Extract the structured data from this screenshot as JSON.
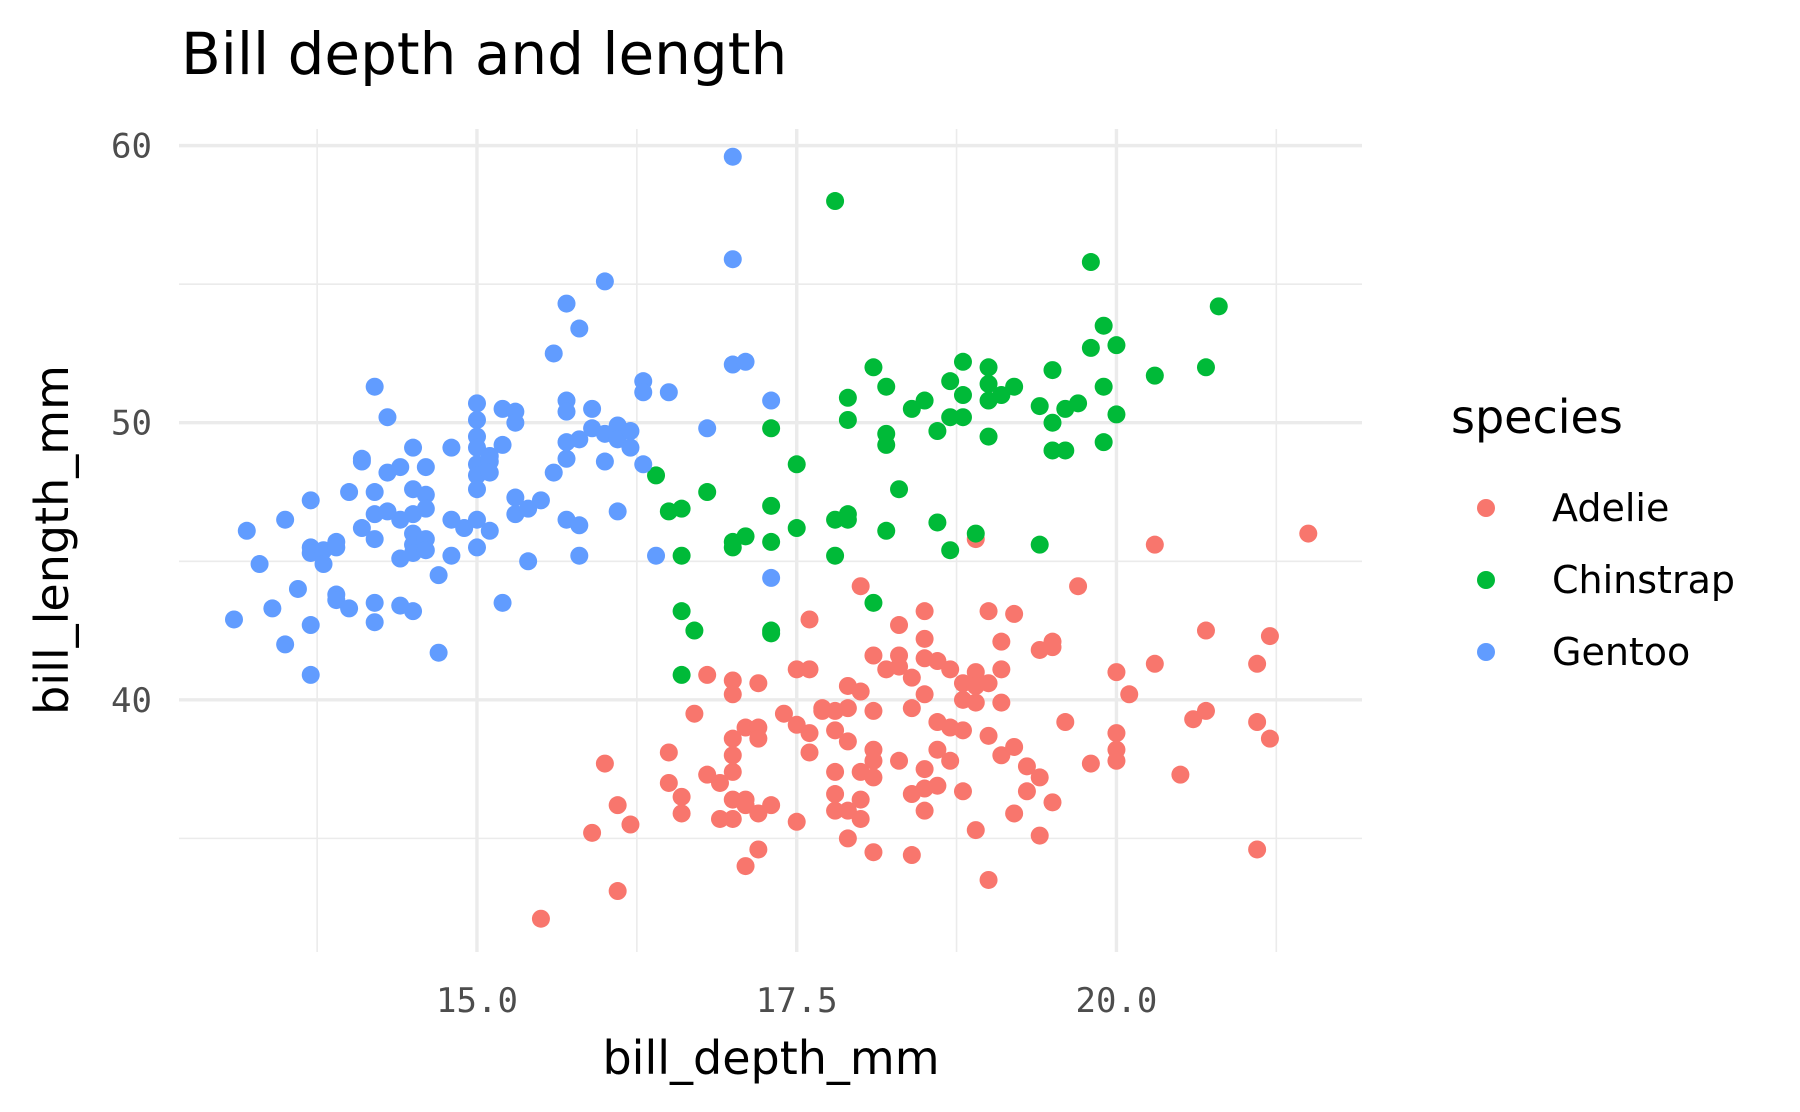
{
  "chart_data": {
    "type": "scatter",
    "title": "Bill depth and length",
    "xlabel": "bill_depth_mm",
    "ylabel": "bill_length_mm",
    "xlim": [
      12.67,
      21.92
    ],
    "ylim": [
      30.9,
      60.6
    ],
    "xticks": [
      15.0,
      17.5,
      20.0
    ],
    "xtick_labels": [
      "15.0",
      "17.5",
      "20.0"
    ],
    "xminor": [
      13.75,
      16.25,
      18.75,
      21.25
    ],
    "yticks": [
      40,
      50,
      60
    ],
    "ytick_labels": [
      "40",
      "50",
      "60"
    ],
    "yminor": [
      35,
      45,
      55
    ],
    "grid": true,
    "legend": {
      "title": "species",
      "placement": "right"
    },
    "series": [
      {
        "name": "Adelie",
        "color": "#F8766D",
        "points": [
          [
            15.5,
            32.1
          ],
          [
            15.9,
            35.2
          ],
          [
            16.0,
            37.7
          ],
          [
            16.1,
            36.2
          ],
          [
            16.1,
            33.1
          ],
          [
            16.2,
            35.5
          ],
          [
            16.5,
            38.1
          ],
          [
            16.5,
            37.0
          ],
          [
            16.6,
            36.5
          ],
          [
            16.6,
            35.9
          ],
          [
            16.7,
            39.5
          ],
          [
            16.8,
            40.9
          ],
          [
            16.8,
            37.3
          ],
          [
            16.9,
            37.0
          ],
          [
            16.9,
            35.7
          ],
          [
            17.0,
            40.7
          ],
          [
            17.0,
            40.2
          ],
          [
            17.0,
            38.6
          ],
          [
            17.0,
            38.0
          ],
          [
            17.0,
            37.4
          ],
          [
            17.0,
            36.4
          ],
          [
            17.0,
            35.7
          ],
          [
            17.1,
            39.0
          ],
          [
            17.1,
            36.4
          ],
          [
            17.1,
            36.2
          ],
          [
            17.1,
            34.0
          ],
          [
            17.2,
            40.6
          ],
          [
            17.2,
            39.0
          ],
          [
            17.2,
            38.6
          ],
          [
            17.2,
            35.9
          ],
          [
            17.2,
            34.6
          ],
          [
            17.3,
            36.2
          ],
          [
            17.4,
            39.5
          ],
          [
            17.5,
            41.1
          ],
          [
            17.5,
            39.1
          ],
          [
            17.5,
            35.6
          ],
          [
            17.6,
            42.9
          ],
          [
            17.6,
            41.1
          ],
          [
            17.6,
            38.8
          ],
          [
            17.6,
            38.1
          ],
          [
            17.7,
            39.7
          ],
          [
            17.7,
            39.6
          ],
          [
            17.8,
            39.6
          ],
          [
            17.8,
            38.9
          ],
          [
            17.8,
            37.4
          ],
          [
            17.8,
            36.6
          ],
          [
            17.8,
            36.0
          ],
          [
            17.9,
            40.5
          ],
          [
            17.9,
            39.7
          ],
          [
            17.9,
            38.5
          ],
          [
            17.9,
            36.0
          ],
          [
            17.9,
            35.0
          ],
          [
            18.0,
            44.1
          ],
          [
            18.0,
            40.3
          ],
          [
            18.0,
            37.4
          ],
          [
            18.0,
            36.4
          ],
          [
            18.0,
            35.7
          ],
          [
            18.1,
            41.6
          ],
          [
            18.1,
            39.6
          ],
          [
            18.1,
            38.2
          ],
          [
            18.1,
            37.8
          ],
          [
            18.1,
            37.2
          ],
          [
            18.1,
            34.5
          ],
          [
            18.2,
            41.1
          ],
          [
            18.3,
            42.7
          ],
          [
            18.3,
            41.6
          ],
          [
            18.3,
            41.2
          ],
          [
            18.3,
            37.8
          ],
          [
            18.4,
            40.8
          ],
          [
            18.4,
            39.7
          ],
          [
            18.4,
            36.6
          ],
          [
            18.4,
            34.4
          ],
          [
            18.5,
            43.2
          ],
          [
            18.5,
            42.2
          ],
          [
            18.5,
            41.5
          ],
          [
            18.5,
            40.2
          ],
          [
            18.5,
            37.5
          ],
          [
            18.5,
            36.8
          ],
          [
            18.5,
            36.0
          ],
          [
            18.6,
            41.4
          ],
          [
            18.6,
            39.2
          ],
          [
            18.6,
            38.2
          ],
          [
            18.6,
            36.9
          ],
          [
            18.7,
            41.1
          ],
          [
            18.7,
            39.0
          ],
          [
            18.7,
            37.8
          ],
          [
            18.8,
            40.6
          ],
          [
            18.8,
            40.0
          ],
          [
            18.8,
            38.9
          ],
          [
            18.8,
            36.7
          ],
          [
            18.9,
            41.0
          ],
          [
            18.9,
            40.5
          ],
          [
            18.9,
            39.9
          ],
          [
            18.9,
            35.3
          ],
          [
            19.0,
            43.2
          ],
          [
            19.0,
            40.6
          ],
          [
            19.0,
            38.7
          ],
          [
            19.0,
            33.5
          ],
          [
            19.1,
            42.1
          ],
          [
            19.1,
            41.1
          ],
          [
            19.1,
            39.9
          ],
          [
            19.1,
            38.0
          ],
          [
            19.2,
            43.1
          ],
          [
            19.2,
            38.3
          ],
          [
            19.2,
            35.9
          ],
          [
            19.3,
            37.6
          ],
          [
            19.3,
            36.7
          ],
          [
            19.4,
            41.8
          ],
          [
            19.4,
            37.2
          ],
          [
            19.4,
            35.1
          ],
          [
            19.5,
            42.1
          ],
          [
            19.5,
            41.9
          ],
          [
            19.5,
            36.3
          ],
          [
            19.6,
            39.2
          ],
          [
            19.7,
            44.1
          ],
          [
            19.8,
            37.7
          ],
          [
            20.0,
            41.0
          ],
          [
            20.0,
            38.8
          ],
          [
            20.0,
            38.2
          ],
          [
            20.0,
            37.8
          ],
          [
            20.1,
            40.2
          ],
          [
            20.3,
            45.6
          ],
          [
            20.3,
            41.3
          ],
          [
            20.5,
            37.3
          ],
          [
            20.6,
            39.3
          ],
          [
            20.7,
            42.5
          ],
          [
            20.7,
            39.6
          ],
          [
            21.1,
            41.3
          ],
          [
            21.1,
            39.2
          ],
          [
            21.1,
            34.6
          ],
          [
            21.2,
            42.3
          ],
          [
            21.2,
            38.6
          ],
          [
            21.5,
            46.0
          ],
          [
            18.9,
            45.8
          ]
        ]
      },
      {
        "name": "Chinstrap",
        "color": "#00BA38",
        "points": [
          [
            16.4,
            48.1
          ],
          [
            16.5,
            46.8
          ],
          [
            16.6,
            46.9
          ],
          [
            16.6,
            45.2
          ],
          [
            16.6,
            43.2
          ],
          [
            16.6,
            40.9
          ],
          [
            16.7,
            42.5
          ],
          [
            16.8,
            47.5
          ],
          [
            17.0,
            45.7
          ],
          [
            17.0,
            45.5
          ],
          [
            17.1,
            45.9
          ],
          [
            17.3,
            49.8
          ],
          [
            17.3,
            47.0
          ],
          [
            17.3,
            45.7
          ],
          [
            17.3,
            42.5
          ],
          [
            17.3,
            42.4
          ],
          [
            17.5,
            48.5
          ],
          [
            17.5,
            46.2
          ],
          [
            17.8,
            58.0
          ],
          [
            17.8,
            46.5
          ],
          [
            17.8,
            45.2
          ],
          [
            17.9,
            50.9
          ],
          [
            17.9,
            50.1
          ],
          [
            17.9,
            46.7
          ],
          [
            17.9,
            46.5
          ],
          [
            18.1,
            52.0
          ],
          [
            18.1,
            43.5
          ],
          [
            18.2,
            51.3
          ],
          [
            18.2,
            49.6
          ],
          [
            18.2,
            49.2
          ],
          [
            18.2,
            46.1
          ],
          [
            18.3,
            47.6
          ],
          [
            18.4,
            50.5
          ],
          [
            18.5,
            50.8
          ],
          [
            18.6,
            49.7
          ],
          [
            18.6,
            46.4
          ],
          [
            18.7,
            51.5
          ],
          [
            18.7,
            50.2
          ],
          [
            18.7,
            45.4
          ],
          [
            18.8,
            52.2
          ],
          [
            18.8,
            51.0
          ],
          [
            18.8,
            50.2
          ],
          [
            18.9,
            46.0
          ],
          [
            19.0,
            52.0
          ],
          [
            19.0,
            51.4
          ],
          [
            19.0,
            50.8
          ],
          [
            19.0,
            49.5
          ],
          [
            19.1,
            51.0
          ],
          [
            19.2,
            51.3
          ],
          [
            19.4,
            50.6
          ],
          [
            19.4,
            45.6
          ],
          [
            19.5,
            51.9
          ],
          [
            19.5,
            50.0
          ],
          [
            19.5,
            49.0
          ],
          [
            19.6,
            50.5
          ],
          [
            19.6,
            49.0
          ],
          [
            19.7,
            50.7
          ],
          [
            19.8,
            55.8
          ],
          [
            19.8,
            52.7
          ],
          [
            19.9,
            53.5
          ],
          [
            19.9,
            51.3
          ],
          [
            19.9,
            49.3
          ],
          [
            20.0,
            52.8
          ],
          [
            20.0,
            50.3
          ],
          [
            20.3,
            51.7
          ],
          [
            20.7,
            52.0
          ],
          [
            20.8,
            54.2
          ]
        ]
      },
      {
        "name": "Gentoo",
        "color": "#619CFF",
        "points": [
          [
            13.1,
            42.9
          ],
          [
            13.2,
            46.1
          ],
          [
            13.3,
            44.9
          ],
          [
            13.4,
            43.3
          ],
          [
            13.5,
            46.5
          ],
          [
            13.5,
            42.0
          ],
          [
            13.6,
            44.0
          ],
          [
            13.7,
            47.2
          ],
          [
            13.7,
            45.5
          ],
          [
            13.7,
            45.3
          ],
          [
            13.7,
            42.7
          ],
          [
            13.7,
            40.9
          ],
          [
            13.8,
            45.4
          ],
          [
            13.8,
            44.9
          ],
          [
            13.9,
            45.7
          ],
          [
            13.9,
            45.5
          ],
          [
            13.9,
            43.8
          ],
          [
            13.9,
            43.6
          ],
          [
            14.0,
            47.5
          ],
          [
            14.0,
            43.3
          ],
          [
            14.1,
            48.7
          ],
          [
            14.1,
            48.6
          ],
          [
            14.1,
            46.2
          ],
          [
            14.2,
            51.3
          ],
          [
            14.2,
            47.5
          ],
          [
            14.2,
            46.7
          ],
          [
            14.2,
            45.8
          ],
          [
            14.2,
            43.5
          ],
          [
            14.2,
            42.8
          ],
          [
            14.3,
            50.2
          ],
          [
            14.3,
            48.2
          ],
          [
            14.3,
            46.8
          ],
          [
            14.4,
            48.4
          ],
          [
            14.4,
            46.5
          ],
          [
            14.4,
            45.1
          ],
          [
            14.4,
            43.4
          ],
          [
            14.5,
            49.1
          ],
          [
            14.5,
            47.6
          ],
          [
            14.5,
            46.7
          ],
          [
            14.5,
            46.0
          ],
          [
            14.5,
            45.6
          ],
          [
            14.5,
            45.3
          ],
          [
            14.5,
            43.2
          ],
          [
            14.6,
            48.4
          ],
          [
            14.6,
            47.4
          ],
          [
            14.6,
            46.9
          ],
          [
            14.6,
            45.8
          ],
          [
            14.6,
            45.4
          ],
          [
            14.7,
            44.5
          ],
          [
            14.7,
            41.7
          ],
          [
            14.8,
            49.1
          ],
          [
            14.8,
            46.5
          ],
          [
            14.8,
            45.2
          ],
          [
            14.9,
            46.2
          ],
          [
            15.0,
            50.7
          ],
          [
            15.0,
            50.1
          ],
          [
            15.0,
            49.5
          ],
          [
            15.0,
            49.1
          ],
          [
            15.0,
            48.5
          ],
          [
            15.0,
            48.1
          ],
          [
            15.0,
            47.6
          ],
          [
            15.0,
            46.5
          ],
          [
            15.0,
            45.5
          ],
          [
            15.1,
            48.8
          ],
          [
            15.1,
            48.6
          ],
          [
            15.1,
            48.2
          ],
          [
            15.1,
            46.1
          ],
          [
            15.2,
            50.5
          ],
          [
            15.2,
            49.2
          ],
          [
            15.2,
            43.5
          ],
          [
            15.3,
            50.4
          ],
          [
            15.3,
            50.0
          ],
          [
            15.3,
            47.3
          ],
          [
            15.3,
            46.7
          ],
          [
            15.4,
            46.9
          ],
          [
            15.4,
            45.0
          ],
          [
            15.5,
            47.2
          ],
          [
            15.6,
            52.5
          ],
          [
            15.6,
            48.2
          ],
          [
            15.7,
            54.3
          ],
          [
            15.7,
            50.8
          ],
          [
            15.7,
            50.4
          ],
          [
            15.7,
            49.3
          ],
          [
            15.7,
            48.7
          ],
          [
            15.7,
            46.5
          ],
          [
            15.8,
            53.4
          ],
          [
            15.8,
            49.4
          ],
          [
            15.8,
            46.3
          ],
          [
            15.8,
            45.2
          ],
          [
            15.9,
            50.5
          ],
          [
            15.9,
            49.8
          ],
          [
            16.0,
            55.1
          ],
          [
            16.0,
            49.6
          ],
          [
            16.0,
            48.6
          ],
          [
            16.1,
            49.9
          ],
          [
            16.1,
            49.4
          ],
          [
            16.1,
            46.8
          ],
          [
            16.2,
            49.7
          ],
          [
            16.2,
            49.1
          ],
          [
            16.3,
            51.5
          ],
          [
            16.3,
            51.1
          ],
          [
            16.3,
            48.5
          ],
          [
            16.4,
            45.2
          ],
          [
            16.5,
            51.1
          ],
          [
            16.8,
            49.8
          ],
          [
            17.0,
            59.6
          ],
          [
            17.0,
            55.9
          ],
          [
            17.0,
            52.1
          ],
          [
            17.1,
            52.2
          ],
          [
            17.3,
            50.8
          ],
          [
            17.3,
            44.4
          ]
        ]
      }
    ]
  }
}
